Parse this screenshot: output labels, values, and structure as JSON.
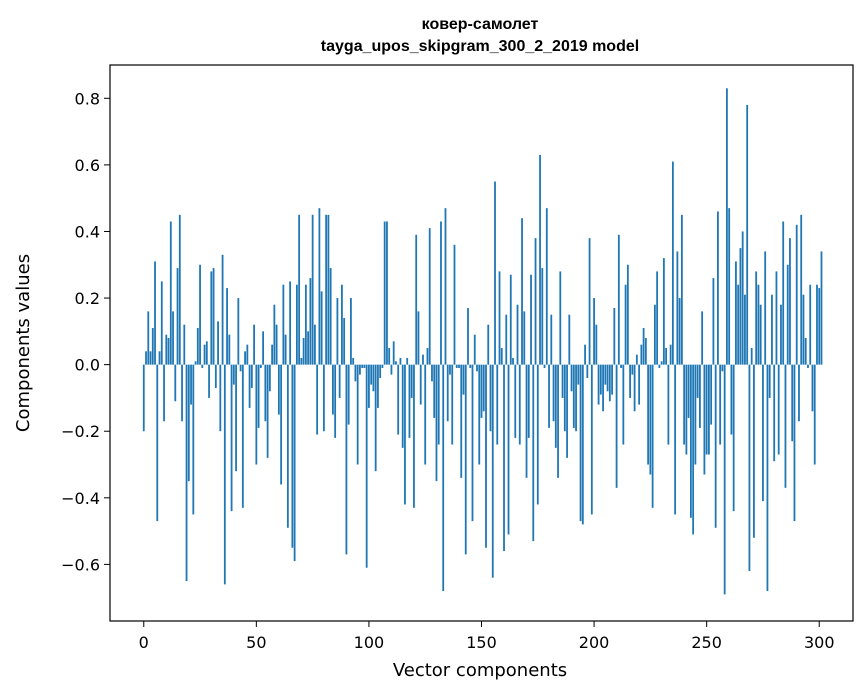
{
  "chart_data": {
    "type": "bar",
    "title": "ковер-самолет",
    "subtitle": "tayga_upos_skipgram_300_2_2019 model",
    "xlabel": "Vector components",
    "ylabel": "Components values",
    "xlim": [
      -15,
      315
    ],
    "ylim": [
      -0.77,
      0.9
    ],
    "xticks": [
      0,
      50,
      100,
      150,
      200,
      250,
      300
    ],
    "yticks": [
      -0.6,
      -0.4,
      -0.2,
      0.0,
      0.2,
      0.4,
      0.6,
      0.8
    ],
    "ytick_labels": [
      "−0.6",
      "−0.4",
      "−0.2",
      "0.0",
      "0.2",
      "0.4",
      "0.6",
      "0.8"
    ],
    "grid": false,
    "bar_color": "#1f77b4",
    "values": [
      -0.2,
      0.04,
      0.16,
      0.04,
      0.11,
      0.31,
      -0.47,
      0.04,
      0.25,
      -0.17,
      0.09,
      0.08,
      0.43,
      0.16,
      -0.11,
      0.29,
      0.45,
      -0.17,
      0.12,
      -0.65,
      -0.35,
      -0.12,
      -0.45,
      0.01,
      0.11,
      0.3,
      -0.01,
      0.06,
      0.07,
      -0.1,
      0.28,
      0.29,
      -0.07,
      0.13,
      -0.2,
      0.33,
      -0.66,
      0.23,
      0.09,
      -0.44,
      -0.06,
      -0.32,
      0.2,
      -0.02,
      -0.43,
      0.04,
      0.06,
      -0.13,
      -0.07,
      0.12,
      -0.3,
      -0.19,
      -0.01,
      0.1,
      -0.17,
      -0.28,
      -0.08,
      0.06,
      0.18,
      0.12,
      -0.15,
      -0.36,
      0.24,
      0.09,
      -0.49,
      0.25,
      -0.55,
      -0.59,
      0.24,
      0.45,
      0.02,
      0.08,
      0.24,
      0.1,
      0.26,
      0.45,
      0.12,
      -0.21,
      0.47,
      0.22,
      -0.2,
      0.45,
      0.45,
      0.29,
      -0.15,
      -0.22,
      0.2,
      -0.1,
      0.24,
      0.14,
      -0.57,
      -0.18,
      0.2,
      0.02,
      -0.05,
      -0.3,
      -0.03,
      -0.01,
      -0.01,
      -0.61,
      -0.13,
      -0.06,
      -0.08,
      -0.32,
      -0.13,
      -0.04,
      -0.01,
      0.43,
      0.43,
      0.05,
      -0.03,
      0.07,
      0.01,
      -0.21,
      0.02,
      -0.25,
      -0.42,
      0.02,
      -0.22,
      -0.1,
      -0.43,
      0.39,
      0.16,
      -0.12,
      0.03,
      -0.3,
      0.05,
      0.41,
      -0.05,
      -0.16,
      -0.35,
      -0.24,
      0.43,
      -0.68,
      0.47,
      -0.17,
      -0.03,
      -0.24,
      0.36,
      -0.01,
      -0.01,
      -0.34,
      -0.09,
      -0.57,
      0.17,
      -0.01,
      -0.47,
      0.09,
      -0.02,
      -0.3,
      -0.16,
      -0.14,
      -0.55,
      0.12,
      -0.2,
      -0.64,
      0.55,
      -0.24,
      0.28,
      0.05,
      -0.56,
      0.15,
      -0.51,
      0.27,
      0.02,
      -0.22,
      0.18,
      -0.24,
      0.44,
      0.16,
      -0.34,
      -0.22,
      0.27,
      -0.53,
      0.38,
      -0.42,
      0.63,
      0.29,
      -0.01,
      0.47,
      -0.19,
      0.15,
      -0.17,
      -0.25,
      -0.34,
      0.28,
      -0.1,
      -0.2,
      -0.28,
      0.15,
      -0.08,
      -0.19,
      -0.2,
      -0.06,
      -0.47,
      -0.48,
      0.06,
      -0.04,
      0.38,
      -0.45,
      0.2,
      0.12,
      -0.12,
      -0.09,
      -0.14,
      -0.06,
      -0.08,
      -0.11,
      -0.09,
      0.17,
      -0.37,
      0.39,
      -0.01,
      -0.24,
      0.24,
      0.3,
      -0.1,
      -0.03,
      -0.14,
      0.03,
      -0.12,
      0.06,
      0.11,
      0.08,
      -0.3,
      -0.33,
      -0.43,
      0.18,
      0.28,
      -0.01,
      0.01,
      0.32,
      0.05,
      -0.24,
      0.06,
      0.61,
      -0.45,
      0.34,
      0.2,
      0.45,
      -0.24,
      -0.27,
      -0.16,
      -0.46,
      -0.51,
      -0.3,
      -0.1,
      -0.19,
      0.16,
      -0.33,
      -0.27,
      -0.27,
      -0.18,
      0.26,
      -0.49,
      0.46,
      -0.24,
      -0.02,
      -0.69,
      0.83,
      0.47,
      -0.21,
      -0.44,
      0.31,
      0.24,
      0.35,
      0.4,
      0.21,
      0.78,
      -0.62,
      0.05,
      -0.52,
      0.28,
      0.24,
      0.18,
      -0.41,
      0.34,
      -0.68,
      -0.1,
      0.21,
      -0.29,
      0.28,
      -0.27,
      0.18,
      0.43,
      -0.37,
      0.3,
      0.38,
      -0.23,
      -0.47,
      0.42,
      -0.17,
      0.45,
      0.21,
      0.08,
      -0.01,
      0.24,
      -0.14,
      -0.3,
      0.24,
      0.23,
      0.34
    ]
  }
}
